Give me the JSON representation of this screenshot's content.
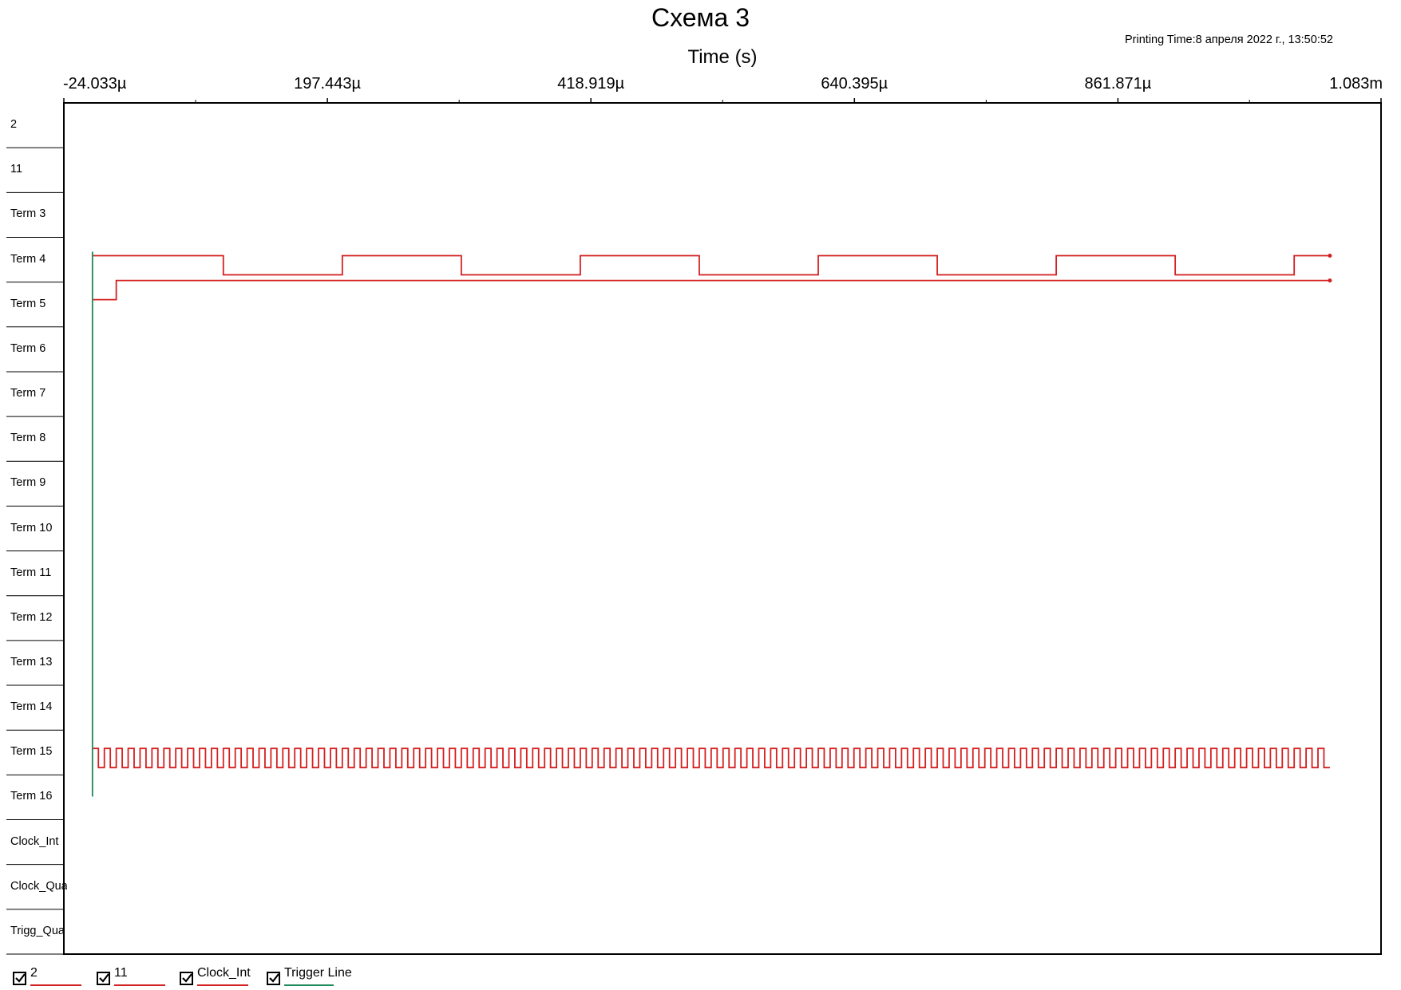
{
  "header": {
    "title": "Схема 3",
    "printing_time": "Printing Time:8 апреля 2022 г., 13:50:52"
  },
  "axis": {
    "title": "Time (s)",
    "tick_labels": [
      "-24.033µ",
      "197.443µ",
      "418.919µ",
      "640.395µ",
      "861.871µ",
      "1.083m"
    ]
  },
  "rows": [
    "2",
    "11",
    "Term 3",
    "Term 4",
    "Term 5",
    "Term 6",
    "Term 7",
    "Term 8",
    "Term 9",
    "Term 10",
    "Term 11",
    "Term 12",
    "Term 13",
    "Term 14",
    "Term 15",
    "Term 16",
    "Clock_Int",
    "Clock_Qua",
    "Trigg_Qua"
  ],
  "legend": [
    {
      "label": "2",
      "checked": true,
      "color": "#d42020"
    },
    {
      "label": "11",
      "checked": true,
      "color": "#d42020"
    },
    {
      "label": "Clock_Int",
      "checked": true,
      "color": "#d42020"
    },
    {
      "label": "Trigger Line",
      "checked": true,
      "color": "#1e8a5a"
    }
  ],
  "colors": {
    "signal": "#d42020",
    "trigger": "#1e8a5a",
    "grid": "#000000"
  },
  "chart_data": {
    "type": "line",
    "x_unit": "s",
    "xlim": [
      -2.4033e-05,
      0.001083
    ],
    "x_ticks": [
      -2.4033e-05,
      0.000197443,
      0.000418919,
      0.000640395,
      0.000861871,
      0.001083
    ],
    "series": [
      {
        "name": "2",
        "row": 3,
        "initial": 1,
        "t_start": 0,
        "t_end": 0.00104,
        "edges": [
          0.00011,
          0.00021,
          0.00031,
          0.00041,
          0.00051,
          0.00061,
          0.00071,
          0.00081,
          0.00091,
          0.00101
        ]
      },
      {
        "name": "11",
        "row": 4,
        "initial": 0,
        "t_start": 0,
        "t_end": 0.00104,
        "edges": [
          2e-05
        ]
      },
      {
        "name": "Clock_Int",
        "row": 14,
        "initial": 1,
        "t_start": 0,
        "t_end": 0.00104,
        "period": 1e-05,
        "edges": []
      }
    ],
    "trigger": {
      "name": "Trigger Line",
      "t": 0
    }
  }
}
